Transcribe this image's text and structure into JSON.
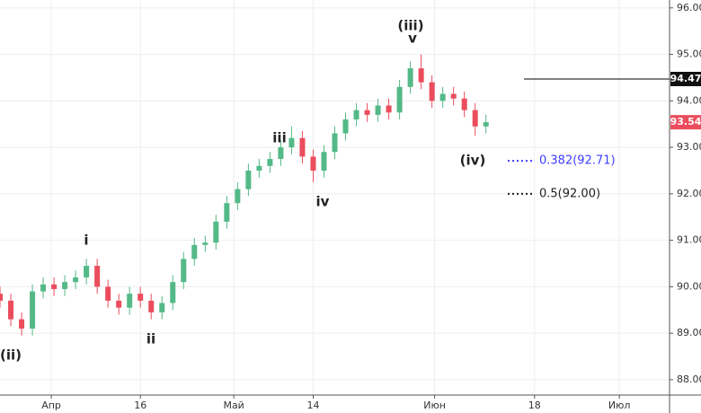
{
  "chart_data": {
    "type": "candlestick",
    "x": [
      0,
      2,
      4,
      6,
      8,
      10,
      12,
      14,
      16,
      18,
      20,
      22,
      24,
      26,
      28,
      30,
      32,
      34,
      36,
      38,
      40,
      42,
      44,
      46,
      48,
      50,
      52,
      54,
      56,
      58,
      60,
      62,
      64,
      66,
      68,
      70,
      72,
      74,
      76,
      78,
      80,
      82,
      84,
      86,
      88,
      90
    ],
    "open": [
      89.85,
      89.7,
      89.3,
      89.1,
      89.9,
      90.05,
      89.95,
      90.1,
      90.2,
      90.45,
      90.0,
      89.7,
      89.55,
      89.85,
      89.7,
      89.45,
      89.65,
      90.1,
      90.6,
      90.9,
      90.95,
      91.4,
      91.8,
      92.1,
      92.5,
      92.6,
      92.75,
      93.0,
      93.2,
      92.8,
      92.5,
      92.9,
      93.3,
      93.6,
      93.8,
      93.7,
      93.9,
      93.75,
      94.3,
      94.7,
      94.4,
      94.0,
      94.15,
      94.05,
      93.8,
      93.45
    ],
    "high": [
      90.0,
      89.85,
      89.45,
      90.05,
      90.2,
      90.2,
      90.25,
      90.35,
      90.6,
      90.6,
      90.15,
      89.85,
      90.0,
      90.0,
      89.85,
      89.8,
      90.25,
      90.75,
      91.05,
      91.1,
      91.55,
      91.95,
      92.25,
      92.65,
      92.75,
      92.9,
      93.15,
      93.45,
      93.35,
      92.95,
      93.05,
      93.45,
      93.75,
      93.95,
      93.95,
      94.05,
      94.05,
      94.45,
      94.85,
      95.0,
      94.55,
      94.3,
      94.3,
      94.2,
      93.95,
      93.7
    ],
    "low": [
      89.55,
      89.15,
      88.95,
      88.95,
      89.75,
      89.8,
      89.8,
      89.95,
      90.05,
      89.85,
      89.55,
      89.4,
      89.4,
      89.55,
      89.3,
      89.3,
      89.5,
      89.95,
      90.45,
      90.75,
      90.8,
      91.25,
      91.65,
      91.95,
      92.35,
      92.45,
      92.6,
      92.85,
      92.65,
      92.25,
      92.35,
      92.75,
      93.15,
      93.45,
      93.55,
      93.55,
      93.6,
      93.6,
      94.15,
      94.25,
      93.85,
      93.85,
      93.9,
      93.65,
      93.25,
      93.3
    ],
    "close": [
      89.7,
      89.3,
      89.1,
      89.9,
      90.05,
      89.95,
      90.1,
      90.2,
      90.45,
      90.0,
      89.7,
      89.55,
      89.85,
      89.7,
      89.45,
      89.65,
      90.1,
      90.6,
      90.9,
      90.95,
      91.4,
      91.8,
      92.1,
      92.5,
      92.6,
      92.75,
      93.0,
      93.2,
      92.8,
      92.5,
      92.9,
      93.3,
      93.6,
      93.8,
      93.7,
      93.9,
      93.75,
      94.3,
      94.7,
      94.4,
      94.0,
      94.15,
      94.05,
      93.8,
      93.45,
      93.54
    ],
    "up_color": "#53b987",
    "down_color": "#eb4d5c",
    "xlim": [
      0,
      124
    ],
    "xticks": [
      {
        "value": 9.5,
        "label": "Апр"
      },
      {
        "value": 26,
        "label": "16"
      },
      {
        "value": 43.3,
        "label": "Май"
      },
      {
        "value": 58,
        "label": "14"
      },
      {
        "value": 80.5,
        "label": "Июн"
      },
      {
        "value": 99,
        "label": "18"
      },
      {
        "value": 114.7,
        "label": "Июл"
      }
    ],
    "ylim": [
      87.67,
      96.17
    ],
    "yticks": [
      {
        "value": 88,
        "label": "88.00"
      },
      {
        "value": 89,
        "label": "89.00"
      },
      {
        "value": 90,
        "label": "90.00"
      },
      {
        "value": 91,
        "label": "91.00"
      },
      {
        "value": 92,
        "label": "92.00"
      },
      {
        "value": 93,
        "label": "93.00"
      },
      {
        "value": 94,
        "label": "94.00"
      },
      {
        "value": 95,
        "label": "95.00"
      },
      {
        "value": 96,
        "label": "96.00"
      }
    ],
    "grid": true,
    "level_line": 94.47,
    "last_price": 93.54,
    "fib_levels": [
      {
        "value": 92.71,
        "label": "0.382(92.71)",
        "color": "#3d3dff"
      },
      {
        "value": 92.0,
        "label": "0.5(92.00)",
        "color": "#222"
      }
    ],
    "annotations": [
      "(ii)",
      "i",
      "ii",
      "iii",
      "iv",
      "(iii)",
      "v",
      "(iv)"
    ]
  }
}
